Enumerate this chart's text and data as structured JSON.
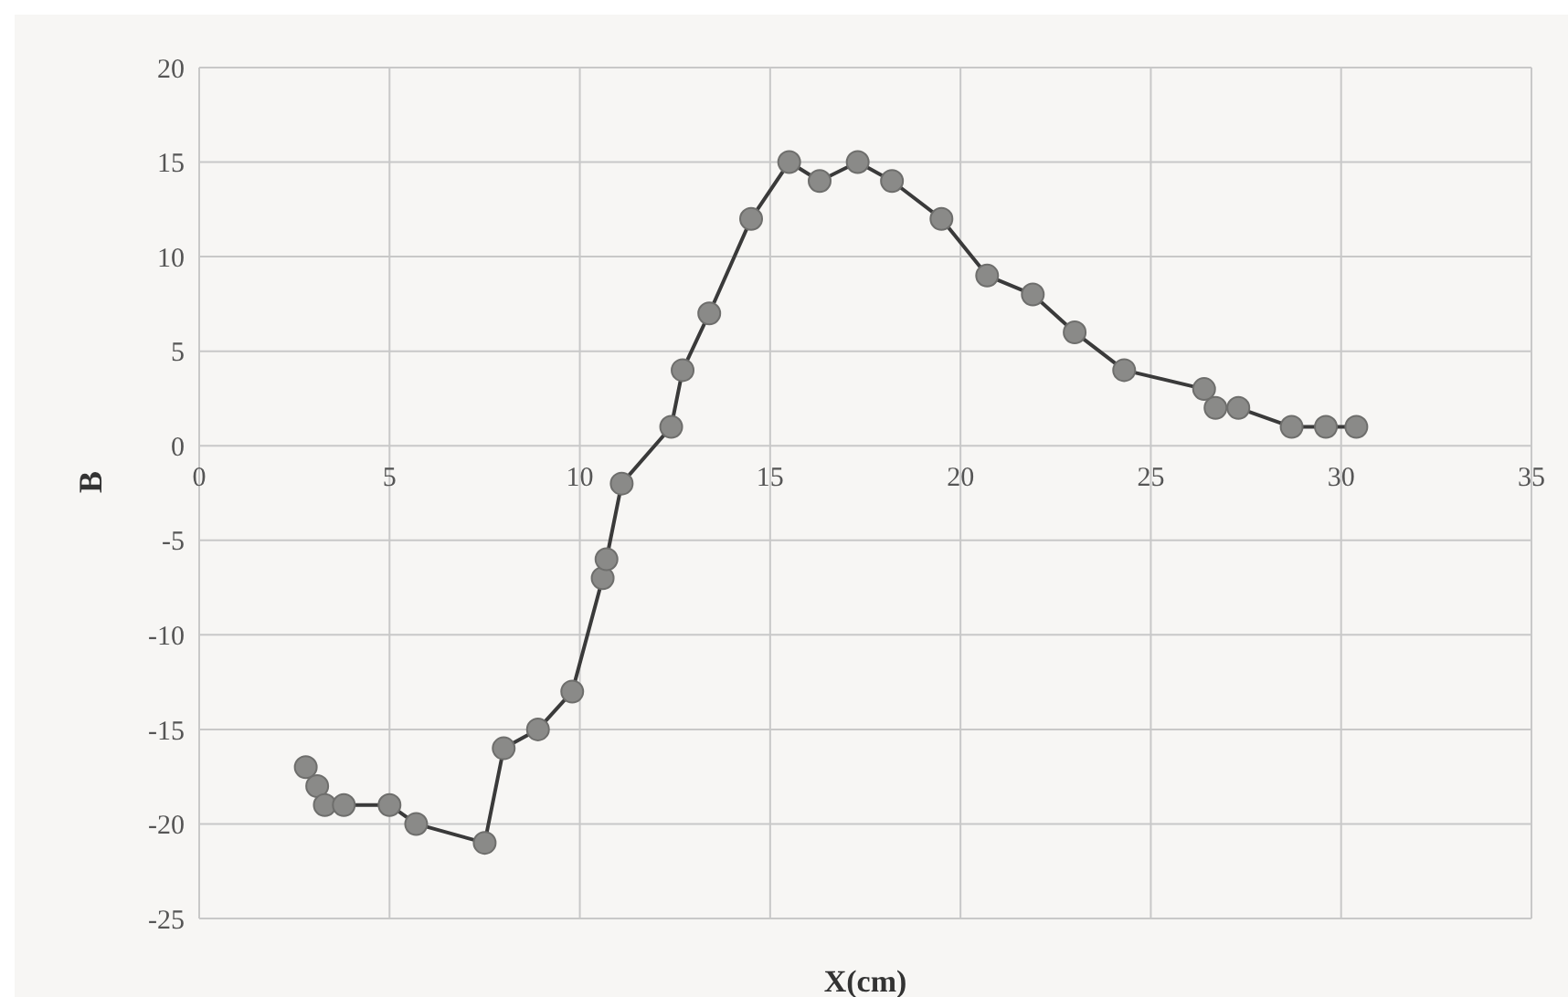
{
  "chart_data": {
    "type": "line",
    "xlabel": "X(cm)",
    "ylabel": "B",
    "xlim": [
      0,
      35
    ],
    "xticks": [
      0,
      5,
      10,
      15,
      20,
      25,
      30,
      35
    ],
    "ylim": [
      -25,
      20
    ],
    "yticks": [
      -25,
      -20,
      -15,
      -10,
      -5,
      0,
      5,
      10,
      15,
      20
    ],
    "grid": true,
    "marker": "circle",
    "line_style": "solid",
    "series": [
      {
        "color": "#3a3a3a",
        "x": [
          2.8,
          3.1,
          3.3,
          3.8,
          5.0,
          5.7,
          7.5,
          8.0,
          8.9,
          9.8,
          10.6,
          10.7,
          11.1,
          12.4,
          12.7,
          13.4,
          14.5,
          15.5,
          16.3,
          17.3,
          18.2,
          19.5,
          20.7,
          21.9,
          23.0,
          24.3,
          26.4,
          26.7,
          27.3,
          28.7,
          29.6,
          30.4
        ],
        "values": [
          -17,
          -18,
          -19,
          -19,
          -19,
          -20,
          -21,
          -16,
          -15,
          -13,
          -7,
          -6,
          -2,
          1,
          4,
          7,
          12,
          15,
          14,
          15,
          14,
          12,
          9,
          8,
          6,
          4,
          3,
          2,
          2,
          1,
          1,
          1
        ]
      }
    ]
  }
}
